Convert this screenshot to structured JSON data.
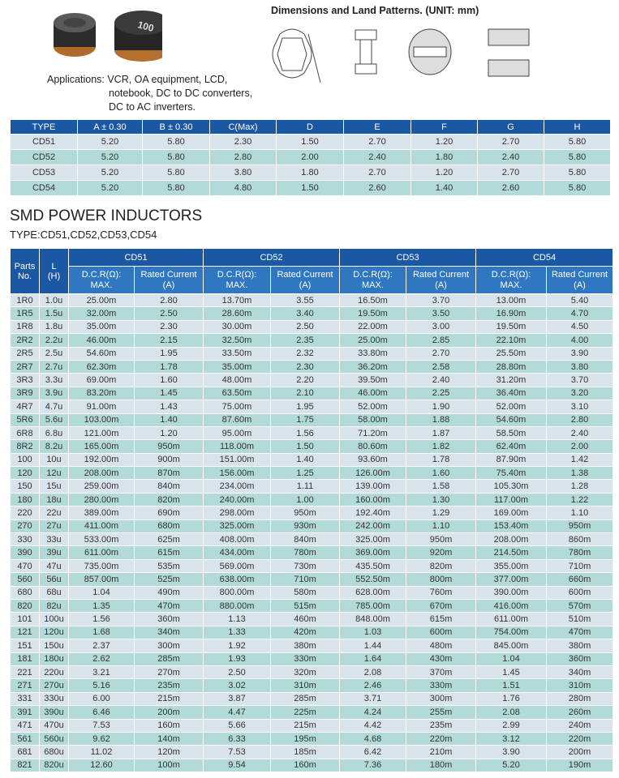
{
  "header": {
    "part_marking": "100",
    "applications": [
      "Applications: VCR, OA equipment, LCD,",
      "notebook, DC to DC converters,",
      "DC to AC inverters."
    ],
    "dimensions_title": "Dimensions and Land Patterns. (UNIT: mm)"
  },
  "dimensions_table": {
    "columns": [
      "TYPE",
      "A ± 0.30",
      "B ± 0.30",
      "C(Max)",
      "D",
      "E",
      "F",
      "G",
      "H"
    ],
    "rows": [
      [
        "CD51",
        "5.20",
        "5.80",
        "2.30",
        "1.50",
        "2.70",
        "1.20",
        "2.70",
        "5.80"
      ],
      [
        "CD52",
        "5.20",
        "5.80",
        "2.80",
        "2.00",
        "2.40",
        "1.80",
        "2.40",
        "5.80"
      ],
      [
        "CD53",
        "5.20",
        "5.80",
        "3.80",
        "1.80",
        "2.70",
        "1.20",
        "2.70",
        "5.80"
      ],
      [
        "CD54",
        "5.20",
        "5.80",
        "4.80",
        "1.50",
        "2.60",
        "1.40",
        "2.60",
        "5.80"
      ]
    ]
  },
  "title": "SMD POWER INDUCTORS",
  "subtitle": "TYPE:CD51,CD52,CD53,CD54",
  "inductor_table": {
    "parts_header": "Parts\nNo.",
    "l_header": "L\n(H)",
    "groups": [
      "CD51",
      "CD52",
      "CD53",
      "CD54"
    ],
    "sub_headers": [
      "D.C.R(Ω):\nMAX.",
      "Rated Current\n(A)",
      "D.C.R(Ω):\nMAX.",
      "Rated Current\n(A)",
      "D.C.R(Ω):\nMAX.",
      "Rated Current\n(A)",
      "D.C.R(Ω):\nMAX.",
      "Rated Current\n(A)"
    ],
    "rows": [
      [
        "1R0",
        "1.0u",
        "25.00m",
        "2.80",
        "13.70m",
        "3.55",
        "16.50m",
        "3.70",
        "13.00m",
        "5.40"
      ],
      [
        "1R5",
        "1.5u",
        "32.00m",
        "2.50",
        "28.60m",
        "3.40",
        "19.50m",
        "3.50",
        "16.90m",
        "4.70"
      ],
      [
        "1R8",
        "1.8u",
        "35.00m",
        "2.30",
        "30.00m",
        "2.50",
        "22.00m",
        "3.00",
        "19.50m",
        "4.50"
      ],
      [
        "2R2",
        "2.2u",
        "46.00m",
        "2.15",
        "32.50m",
        "2.35",
        "25.00m",
        "2.85",
        "22.10m",
        "4.00"
      ],
      [
        "2R5",
        "2.5u",
        "54.60m",
        "1.95",
        "33.50m",
        "2.32",
        "33.80m",
        "2.70",
        "25.50m",
        "3.90"
      ],
      [
        "2R7",
        "2.7u",
        "62.30m",
        "1.78",
        "35.00m",
        "2.30",
        "36.20m",
        "2.58",
        "28.80m",
        "3.80"
      ],
      [
        "3R3",
        "3.3u",
        "69.00m",
        "1.60",
        "48.00m",
        "2.20",
        "39.50m",
        "2.40",
        "31.20m",
        "3.70"
      ],
      [
        "3R9",
        "3.9u",
        "83.20m",
        "1.45",
        "63.50m",
        "2.10",
        "46.00m",
        "2.25",
        "36.40m",
        "3.20"
      ],
      [
        "4R7",
        "4.7u",
        "91.00m",
        "1.43",
        "75.00m",
        "1.95",
        "52.00m",
        "1.90",
        "52.00m",
        "3.10"
      ],
      [
        "5R6",
        "5.6u",
        "103.00m",
        "1.40",
        "87.60m",
        "1.75",
        "58.00m",
        "1.88",
        "54.60m",
        "2.80"
      ],
      [
        "6R8",
        "6.8u",
        "121.00m",
        "1.20",
        "95.00m",
        "1.56",
        "71.20m",
        "1.87",
        "58.50m",
        "2.40"
      ],
      [
        "8R2",
        "8.2u",
        "165.00m",
        "950m",
        "118.00m",
        "1.50",
        "80.60m",
        "1.82",
        "62.40m",
        "2.00"
      ],
      [
        "100",
        "10u",
        "192.00m",
        "900m",
        "151.00m",
        "1.40",
        "93.60m",
        "1.78",
        "87.90m",
        "1.42"
      ],
      [
        "120",
        "12u",
        "208.00m",
        "870m",
        "156.00m",
        "1.25",
        "126.00m",
        "1.60",
        "75.40m",
        "1.38"
      ],
      [
        "150",
        "15u",
        "259.00m",
        "840m",
        "234.00m",
        "1.11",
        "139.00m",
        "1.58",
        "105.30m",
        "1.28"
      ],
      [
        "180",
        "18u",
        "280.00m",
        "820m",
        "240.00m",
        "1.00",
        "160.00m",
        "1.30",
        "117.00m",
        "1.22"
      ],
      [
        "220",
        "22u",
        "389.00m",
        "690m",
        "298.00m",
        "950m",
        "192.40m",
        "1.29",
        "169.00m",
        "1.10"
      ],
      [
        "270",
        "27u",
        "411.00m",
        "680m",
        "325.00m",
        "930m",
        "242.00m",
        "1.10",
        "153.40m",
        "950m"
      ],
      [
        "330",
        "33u",
        "533.00m",
        "625m",
        "408.00m",
        "840m",
        "325.00m",
        "950m",
        "208.00m",
        "860m"
      ],
      [
        "390",
        "39u",
        "611.00m",
        "615m",
        "434.00m",
        "780m",
        "369.00m",
        "920m",
        "214.50m",
        "780m"
      ],
      [
        "470",
        "47u",
        "735.00m",
        "535m",
        "569.00m",
        "730m",
        "435.50m",
        "820m",
        "355.00m",
        "710m"
      ],
      [
        "560",
        "56u",
        "857.00m",
        "525m",
        "638.00m",
        "710m",
        "552.50m",
        "800m",
        "377.00m",
        "660m"
      ],
      [
        "680",
        "68u",
        "1.04",
        "490m",
        "800.00m",
        "580m",
        "628.00m",
        "760m",
        "390.00m",
        "600m"
      ],
      [
        "820",
        "82u",
        "1.35",
        "470m",
        "880.00m",
        "515m",
        "785.00m",
        "670m",
        "416.00m",
        "570m"
      ],
      [
        "101",
        "100u",
        "1.56",
        "360m",
        "1.13",
        "460m",
        "848.00m",
        "615m",
        "611.00m",
        "510m"
      ],
      [
        "121",
        "120u",
        "1.68",
        "340m",
        "1.33",
        "420m",
        "1.03",
        "600m",
        "754.00m",
        "470m"
      ],
      [
        "151",
        "150u",
        "2.37",
        "300m",
        "1.92",
        "380m",
        "1.44",
        "480m",
        "845.00m",
        "380m"
      ],
      [
        "181",
        "180u",
        "2.62",
        "285m",
        "1.93",
        "330m",
        "1.64",
        "430m",
        "1.04",
        "360m"
      ],
      [
        "221",
        "220u",
        "3.21",
        "270m",
        "2.50",
        "320m",
        "2.08",
        "370m",
        "1.45",
        "340m"
      ],
      [
        "271",
        "270u",
        "5.16",
        "235m",
        "3.02",
        "310m",
        "2.46",
        "330m",
        "1.51",
        "310m"
      ],
      [
        "331",
        "330u",
        "6.00",
        "215m",
        "3.87",
        "285m",
        "3.71",
        "300m",
        "1.76",
        "280m"
      ],
      [
        "391",
        "390u",
        "6.46",
        "200m",
        "4.47",
        "225m",
        "4.24",
        "255m",
        "2.08",
        "260m"
      ],
      [
        "471",
        "470u",
        "7.53",
        "160m",
        "5.66",
        "215m",
        "4.42",
        "235m",
        "2.99",
        "240m"
      ],
      [
        "561",
        "560u",
        "9.62",
        "140m",
        "6.33",
        "195m",
        "4.68",
        "220m",
        "3.12",
        "220m"
      ],
      [
        "681",
        "680u",
        "11.02",
        "120m",
        "7.53",
        "185m",
        "6.42",
        "210m",
        "3.90",
        "200m"
      ],
      [
        "821",
        "820u",
        "12.60",
        "100m",
        "9.54",
        "160m",
        "7.36",
        "180m",
        "5.20",
        "190m"
      ]
    ]
  }
}
